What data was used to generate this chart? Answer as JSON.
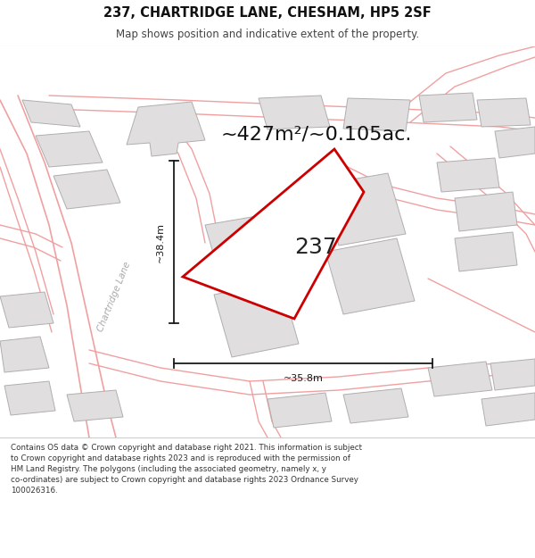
{
  "title_line1": "237, CHARTRIDGE LANE, CHESHAM, HP5 2SF",
  "title_line2": "Map shows position and indicative extent of the property.",
  "area_label": "~427m²/~0.105ac.",
  "plot_number": "237",
  "dim_vertical": "~38.4m",
  "dim_horizontal": "~35.8m",
  "road_label": "Chartridge Lane",
  "footer_text": "Contains OS data © Crown copyright and database right 2021. This information is subject\nto Crown copyright and database rights 2023 and is reproduced with the permission of\nHM Land Registry. The polygons (including the associated geometry, namely x, y\nco-ordinates) are subject to Crown copyright and database rights 2023 Ordnance Survey\n100026316.",
  "map_bg": "#f8f7f7",
  "plot_fill": "#ffffff",
  "plot_edge": "#cc0000",
  "road_color": "#f0a0a0",
  "building_fill": "#e0dede",
  "building_edge": "#b0aeae",
  "dim_color": "#1a1a1a",
  "bg_white": "#ffffff",
  "text_dark": "#111111",
  "road_text_color": "#aaaaaa",
  "title_fontsize": 10.5,
  "subtitle_fontsize": 8.5,
  "area_fontsize": 16,
  "num_fontsize": 18,
  "dim_fontsize": 8,
  "road_lbl_fontsize": 7.5,
  "footer_fontsize": 6.3
}
